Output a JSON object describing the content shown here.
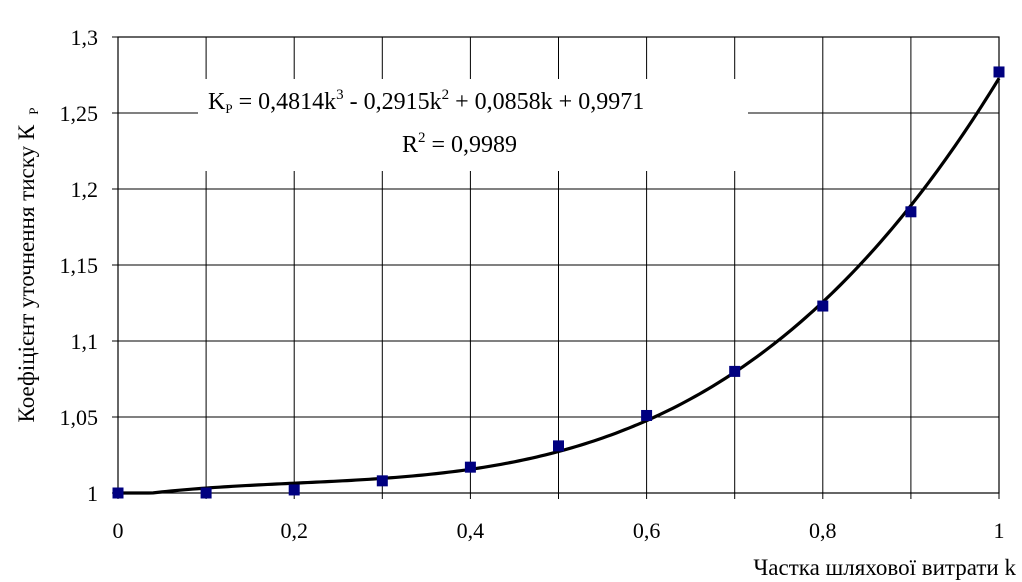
{
  "chart_data": {
    "type": "scatter",
    "xlabel": "Частка шляхової витрати k",
    "ylabel_main": "Коефіцієнт уточнення тиску К",
    "ylabel_sub": "Р",
    "xlim": [
      0,
      1
    ],
    "ylim": [
      1,
      1.3
    ],
    "x_ticks": [
      {
        "v": 0,
        "label": "0"
      },
      {
        "v": 0.1,
        "label": ""
      },
      {
        "v": 0.2,
        "label": "0,2"
      },
      {
        "v": 0.3,
        "label": ""
      },
      {
        "v": 0.4,
        "label": "0,4"
      },
      {
        "v": 0.5,
        "label": ""
      },
      {
        "v": 0.6,
        "label": "0,6"
      },
      {
        "v": 0.7,
        "label": ""
      },
      {
        "v": 0.8,
        "label": "0,8"
      },
      {
        "v": 0.9,
        "label": ""
      },
      {
        "v": 1,
        "label": "1"
      }
    ],
    "y_ticks": [
      {
        "v": 1,
        "label": "1"
      },
      {
        "v": 1.05,
        "label": "1,05"
      },
      {
        "v": 1.1,
        "label": "1,1"
      },
      {
        "v": 1.15,
        "label": "1,15"
      },
      {
        "v": 1.2,
        "label": "1,2"
      },
      {
        "v": 1.25,
        "label": "1,25"
      },
      {
        "v": 1.3,
        "label": "1,3"
      }
    ],
    "grid": true,
    "marker_color": "#000080",
    "series": [
      {
        "points": [
          {
            "x": 0,
            "y": 1.0
          },
          {
            "x": 0.1,
            "y": 1.0
          },
          {
            "x": 0.2,
            "y": 1.002
          },
          {
            "x": 0.3,
            "y": 1.008
          },
          {
            "x": 0.4,
            "y": 1.017
          },
          {
            "x": 0.5,
            "y": 1.031
          },
          {
            "x": 0.6,
            "y": 1.051
          },
          {
            "x": 0.7,
            "y": 1.08
          },
          {
            "x": 0.8,
            "y": 1.123
          },
          {
            "x": 0.9,
            "y": 1.185
          },
          {
            "x": 1,
            "y": 1.277
          }
        ]
      }
    ],
    "trendline": {
      "type": "polynomial",
      "coefficients": [
        0.4814,
        -0.2915,
        0.0858,
        0.9971
      ],
      "color": "#000000"
    },
    "equation": {
      "k_symbol": "K",
      "k_sub": "P",
      "part1": " = 0,4814k",
      "sup1": "3",
      "part2": " - 0,2915k",
      "sup2": "2",
      "part3": " + 0,0858k + 0,9971",
      "r2_base": "R",
      "r2_sup": "2",
      "r2_value": " = 0,9989"
    }
  }
}
